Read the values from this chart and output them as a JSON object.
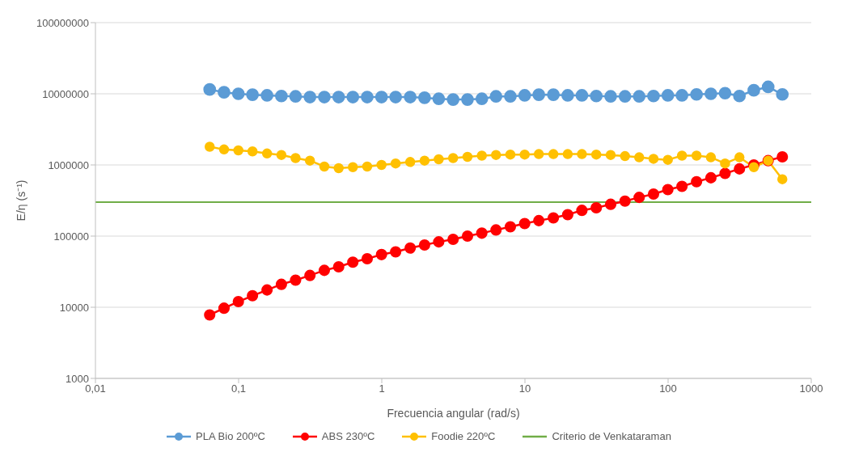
{
  "chart_data": {
    "type": "line",
    "xlabel": "Frecuencia angular (rad/s)",
    "ylabel": "E/η (s⁻¹)",
    "log": "xy",
    "grid": "y",
    "legend": "bottom",
    "marker": "circle",
    "x": [
      0.0628,
      0.0791,
      0.0996,
      0.125,
      0.158,
      0.199,
      0.25,
      0.315,
      0.397,
      0.5,
      0.628,
      0.791,
      0.996,
      1.25,
      1.58,
      1.99,
      2.5,
      3.15,
      3.97,
      5,
      6.28,
      7.91,
      9.96,
      12.5,
      15.8,
      19.9,
      25,
      31.5,
      39.7,
      50,
      62.8,
      79.1,
      99.6,
      125,
      158,
      199,
      250,
      315,
      397,
      500,
      628
    ],
    "xlim": [
      0.01,
      1000
    ],
    "xticks": [
      {
        "value": 0.01,
        "label": "0,01"
      },
      {
        "value": 0.1,
        "label": "0,1"
      },
      1,
      10,
      100,
      1000
    ],
    "ylim": [
      1000,
      100000000
    ],
    "yticks": [
      1000,
      10000,
      100000,
      1000000,
      10000000,
      100000000
    ],
    "series": [
      {
        "name": "PLA Bio 200ºC",
        "color": "#5b9bd5",
        "values": [
          11500000,
          10500000,
          10000000,
          9700000,
          9500000,
          9300000,
          9200000,
          9000000,
          9000000,
          9000000,
          9000000,
          9000000,
          9000000,
          9000000,
          9000000,
          8800000,
          8500000,
          8300000,
          8300000,
          8500000,
          9200000,
          9200000,
          9500000,
          9700000,
          9700000,
          9500000,
          9500000,
          9300000,
          9200000,
          9200000,
          9200000,
          9300000,
          9500000,
          9500000,
          9800000,
          10000000,
          10200000,
          9300000,
          11200000,
          12500000,
          9800000
        ]
      },
      {
        "name": "ABS 230ºC",
        "color": "#ff0000",
        "values": [
          7800,
          9700,
          12000,
          14500,
          17500,
          21000,
          24000,
          28000,
          33000,
          37000,
          43000,
          48000,
          55000,
          60000,
          68000,
          75000,
          83000,
          90000,
          100000,
          110000,
          122000,
          135000,
          150000,
          165000,
          180000,
          200000,
          230000,
          250000,
          280000,
          310000,
          350000,
          390000,
          450000,
          500000,
          580000,
          660000,
          760000,
          880000,
          1000000,
          1150000,
          1300000
        ]
      },
      {
        "name": "Foodie 220ºC",
        "color": "#ffc000",
        "values": [
          1800000,
          1650000,
          1600000,
          1550000,
          1450000,
          1380000,
          1250000,
          1150000,
          950000,
          900000,
          930000,
          950000,
          1000000,
          1050000,
          1100000,
          1150000,
          1200000,
          1250000,
          1300000,
          1350000,
          1380000,
          1400000,
          1400000,
          1420000,
          1420000,
          1420000,
          1420000,
          1400000,
          1380000,
          1330000,
          1280000,
          1220000,
          1180000,
          1350000,
          1350000,
          1280000,
          1050000,
          1280000,
          930000,
          1150000,
          630000
        ]
      }
    ],
    "ref_lines": [
      {
        "axis": "y",
        "value": 300000,
        "label": "Criterio de Venkataraman",
        "color": "#70ad47"
      }
    ]
  }
}
